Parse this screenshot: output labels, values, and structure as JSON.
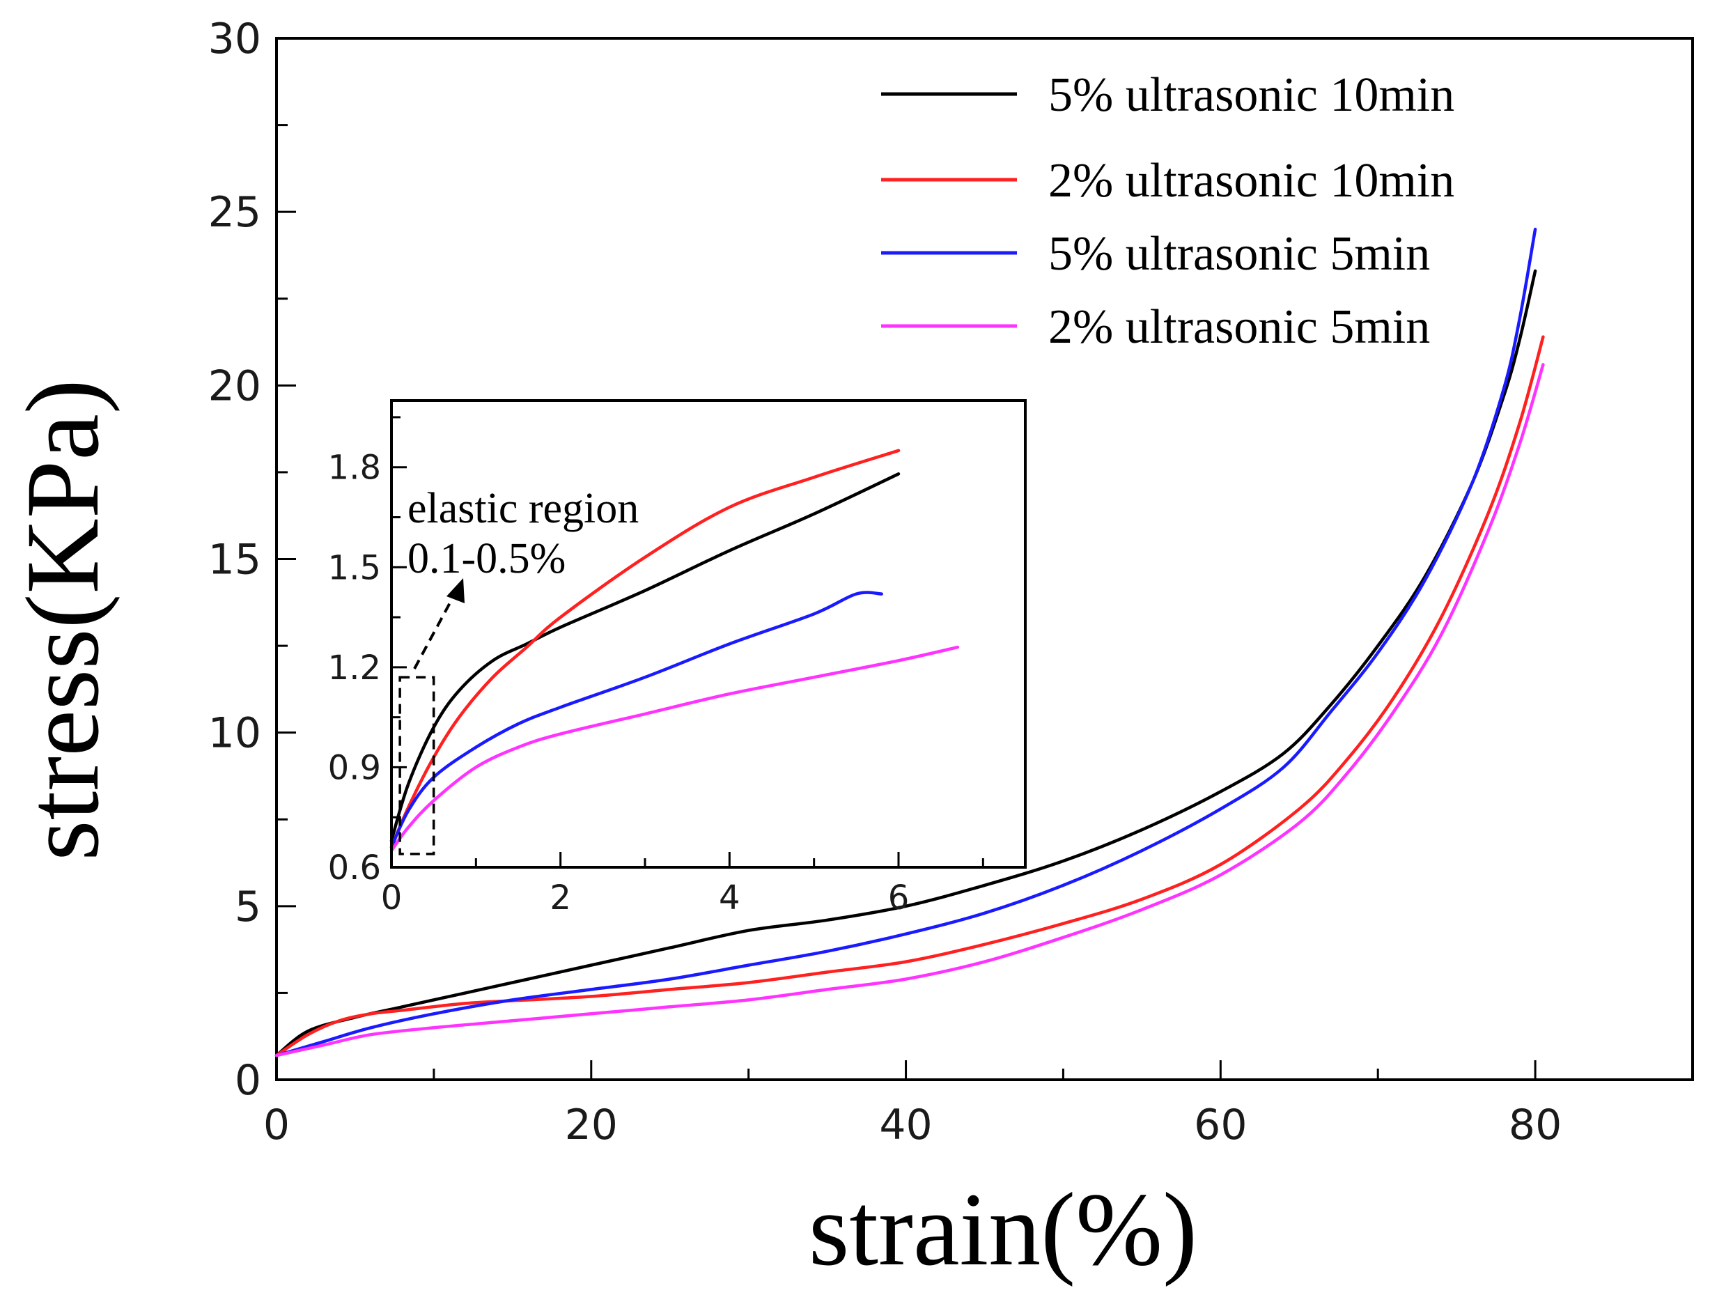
{
  "chart_data": {
    "type": "line",
    "xlabel": "strain(%)",
    "ylabel": "stress(KPa)",
    "xlim": [
      0,
      90
    ],
    "ylim": [
      0,
      30
    ],
    "xticks": [
      0,
      20,
      40,
      60,
      80
    ],
    "yticks": [
      0,
      5,
      10,
      15,
      20,
      25,
      30
    ],
    "legend_position": "top-right",
    "series": [
      {
        "name": "5% ultrasonic 10min",
        "color": "#000000",
        "x": [
          0,
          2,
          5,
          8,
          12,
          16,
          20,
          25,
          30,
          35,
          40,
          45,
          50,
          55,
          60,
          64,
          67,
          70,
          73,
          76,
          78,
          79,
          80
        ],
        "y": [
          0.7,
          1.4,
          1.8,
          2.1,
          2.5,
          2.9,
          3.3,
          3.8,
          4.3,
          4.6,
          5.0,
          5.6,
          6.3,
          7.2,
          8.3,
          9.4,
          10.8,
          12.5,
          14.5,
          17.2,
          19.7,
          21.3,
          23.3
        ]
      },
      {
        "name": "2% ultrasonic 10min",
        "color": "#ff2020",
        "x": [
          0,
          2,
          4,
          6,
          8,
          12,
          16,
          20,
          25,
          30,
          35,
          40,
          45,
          50,
          55,
          60,
          65,
          68,
          71,
          74,
          77,
          79,
          80.5
        ],
        "y": [
          0.7,
          1.3,
          1.7,
          1.9,
          2.0,
          2.2,
          2.3,
          2.4,
          2.6,
          2.8,
          3.1,
          3.4,
          3.9,
          4.5,
          5.2,
          6.2,
          7.8,
          9.2,
          11.0,
          13.3,
          16.3,
          18.9,
          21.4
        ]
      },
      {
        "name": "5% ultrasonic 5min",
        "color": "#1a1aff",
        "x": [
          0,
          3,
          6,
          10,
          15,
          20,
          25,
          30,
          35,
          40,
          45,
          50,
          55,
          60,
          64,
          67,
          70,
          73,
          76,
          78,
          79,
          80
        ],
        "y": [
          0.7,
          1.1,
          1.5,
          1.9,
          2.3,
          2.6,
          2.9,
          3.3,
          3.7,
          4.2,
          4.8,
          5.6,
          6.6,
          7.8,
          9.0,
          10.6,
          12.3,
          14.4,
          17.2,
          19.9,
          21.9,
          24.5
        ]
      },
      {
        "name": "2% ultrasonic 5min",
        "color": "#ff33ff",
        "x": [
          0,
          3,
          6,
          10,
          15,
          20,
          25,
          30,
          35,
          40,
          45,
          50,
          55,
          60,
          65,
          68,
          71,
          74,
          77,
          79,
          80.5
        ],
        "y": [
          0.7,
          1.0,
          1.3,
          1.5,
          1.7,
          1.9,
          2.1,
          2.3,
          2.6,
          2.9,
          3.4,
          4.1,
          4.9,
          5.9,
          7.4,
          8.8,
          10.6,
          12.8,
          15.8,
          18.3,
          20.6
        ]
      }
    ],
    "inset": {
      "xlim": [
        0,
        7.5
      ],
      "ylim": [
        0.6,
        2.0
      ],
      "xticks": [
        0,
        2,
        4,
        6
      ],
      "yticks": [
        0.6,
        0.9,
        1.2,
        1.5,
        1.8
      ],
      "ytick_labels": [
        "0.6",
        "0.9",
        "1.2",
        "1.5",
        "1.8"
      ],
      "annotation": [
        "elastic region",
        "0.1-0.5%"
      ],
      "highlight_box": {
        "x_range": [
          0.1,
          0.5
        ],
        "y_range": [
          0.64,
          1.17
        ]
      },
      "series": [
        {
          "name": "5% ultrasonic 10min",
          "color": "#000000",
          "x": [
            0,
            0.2,
            0.5,
            0.8,
            1.2,
            1.6,
            2,
            3,
            4,
            5,
            6
          ],
          "y": [
            0.68,
            0.85,
            1.02,
            1.13,
            1.22,
            1.27,
            1.32,
            1.43,
            1.55,
            1.66,
            1.78
          ]
        },
        {
          "name": "2% ultrasonic 10min",
          "color": "#ff2020",
          "x": [
            0,
            0.2,
            0.5,
            0.8,
            1.2,
            1.6,
            2,
            3,
            4,
            5,
            6
          ],
          "y": [
            0.66,
            0.78,
            0.93,
            1.05,
            1.17,
            1.26,
            1.35,
            1.53,
            1.68,
            1.77,
            1.85
          ]
        },
        {
          "name": "5% ultrasonic 5min",
          "color": "#1a1aff",
          "x": [
            0,
            0.2,
            0.5,
            1,
            1.5,
            2,
            3,
            4,
            5,
            5.5,
            5.8
          ],
          "y": [
            0.66,
            0.77,
            0.87,
            0.96,
            1.03,
            1.08,
            1.17,
            1.27,
            1.36,
            1.42,
            1.42
          ]
        },
        {
          "name": "2% ultrasonic 5min",
          "color": "#ff33ff",
          "x": [
            0,
            0.2,
            0.5,
            1,
            1.5,
            2,
            3,
            4,
            5,
            6,
            6.7
          ],
          "y": [
            0.65,
            0.72,
            0.8,
            0.9,
            0.96,
            1.0,
            1.06,
            1.12,
            1.17,
            1.22,
            1.26
          ]
        }
      ]
    }
  }
}
